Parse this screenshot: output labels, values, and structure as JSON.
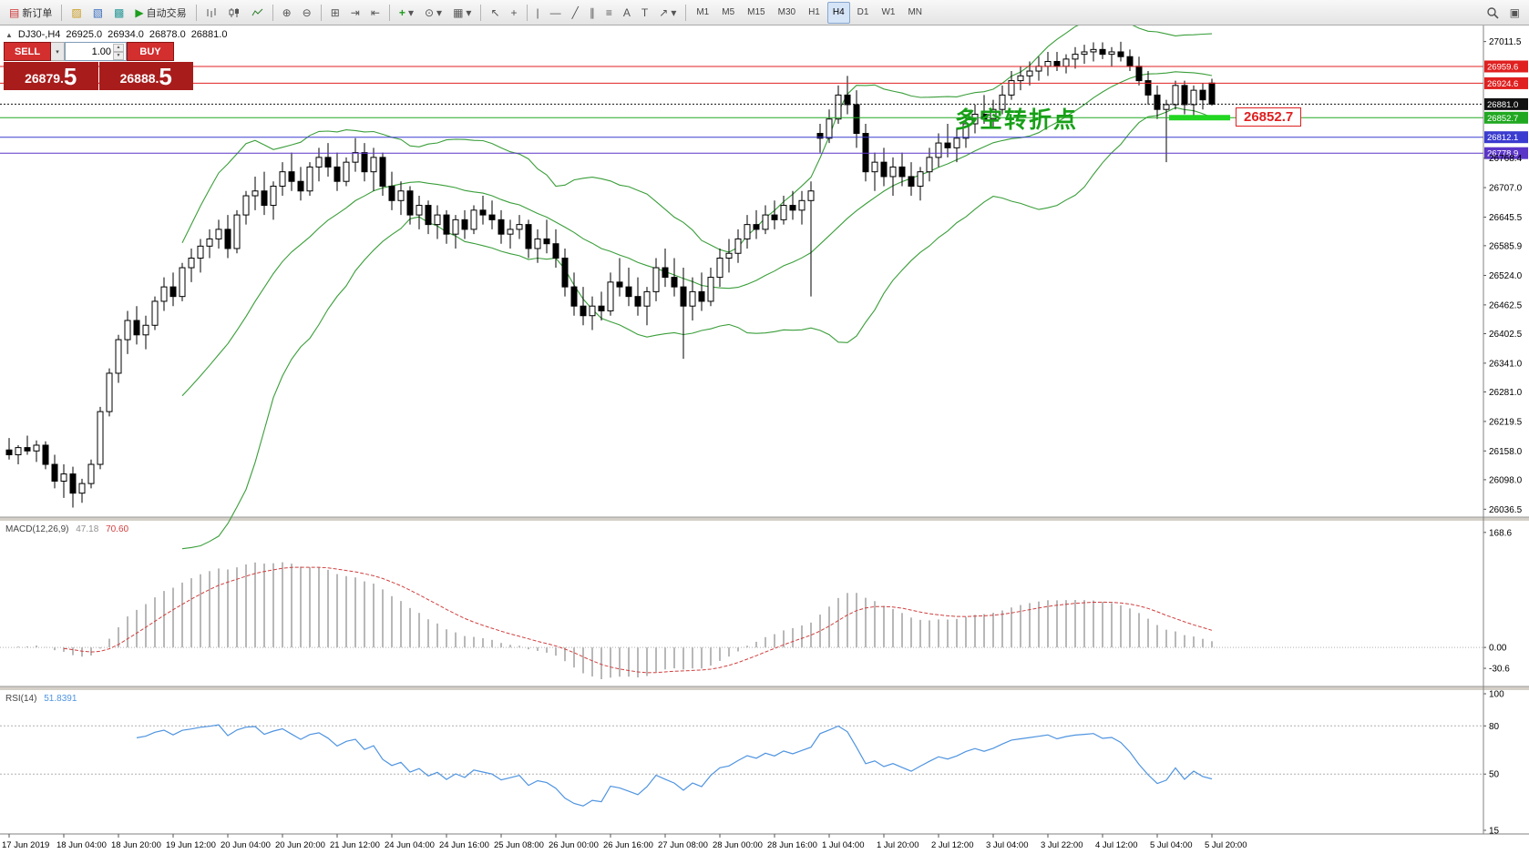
{
  "toolbar": {
    "new_order_label": "新订单",
    "autotrading_label": "自动交易",
    "timeframes": [
      "M1",
      "M5",
      "M15",
      "M30",
      "H1",
      "H4",
      "D1",
      "W1",
      "MN"
    ],
    "active_timeframe": "H4"
  },
  "icons": {
    "collapse": "▲",
    "new_order": "▤",
    "new_chart": "▨",
    "profiles": "▧",
    "tester": "▩",
    "autotrading_play": "▶",
    "zoom_in": "⊕",
    "zoom_out": "⊖",
    "tile_windows": "⊞",
    "auto_scroll": "⇥",
    "chart_shift": "⇤",
    "indicators_plus": "+",
    "periods": "⊙",
    "templates": "▦",
    "dropdown": "▾",
    "cursor": "↖",
    "crosshair": "+",
    "vertical_line": "|",
    "horizontal_line": "—",
    "trendline": "╱",
    "channel": "∥",
    "fibonacci": "≡",
    "text": "A",
    "text_label": "T",
    "arrows": "↗",
    "data_window": "▣",
    "spinner_up": "▲",
    "spinner_down": "▼"
  },
  "chart_header": {
    "collapse": "▲",
    "symbol": "DJ30-,H4",
    "open": "26925.0",
    "high": "26934.0",
    "low": "26878.0",
    "close": "26881.0"
  },
  "trade_panel": {
    "sell_label": "SELL",
    "buy_label": "BUY",
    "volume": "1.00",
    "sell_price": "26879.",
    "sell_price_big": "5",
    "buy_price": "26888.",
    "buy_price_big": "5"
  },
  "annotation": {
    "text": "多空转折点",
    "color": "#17a017"
  },
  "price_flag": "26852.7",
  "axis": {
    "y_ticks": [
      27011.5,
      26768.4,
      26707.0,
      26645.5,
      26585.9,
      26524.0,
      26462.5,
      26402.5,
      26341.0,
      26281.0,
      26219.5,
      26158.0,
      26098.0,
      26036.5
    ],
    "price_lines": [
      {
        "price": 26959.6,
        "label": "26959.6",
        "color": "#e02020",
        "style": "solid"
      },
      {
        "price": 26924.6,
        "label": "26924.6",
        "color": "#e02020",
        "style": "solid"
      },
      {
        "price": 26881.0,
        "label": "26881.0",
        "color": "#111111",
        "style": "dotted"
      },
      {
        "price": 26852.7,
        "label": "26852.7",
        "color": "#21a821",
        "style": "solid"
      },
      {
        "price": 26812.1,
        "label": "26812.1",
        "color": "#3b3bd0",
        "style": "solid"
      },
      {
        "price": 26778.9,
        "label": "26778.9",
        "color": "#5b35c8",
        "style": "solid"
      }
    ],
    "x_labels": [
      "17 Jun 2019",
      "18 Jun 04:00",
      "18 Jun 20:00",
      "19 Jun 12:00",
      "20 Jun 04:00",
      "20 Jun 20:00",
      "21 Jun 12:00",
      "24 Jun 04:00",
      "24 Jun 16:00",
      "25 Jun 08:00",
      "26 Jun 00:00",
      "26 Jun 16:00",
      "27 Jun 08:00",
      "28 Jun 00:00",
      "28 Jun 16:00",
      "1 Jul 04:00",
      "1 Jul 20:00",
      "2 Jul 12:00",
      "3 Jul 04:00",
      "3 Jul 22:00",
      "4 Jul 12:00",
      "5 Jul 04:00",
      "5 Jul 20:00"
    ]
  },
  "chart_data": {
    "type": "candlestick",
    "symbol": "DJ30-",
    "timeframe": "H4",
    "price_range": [
      26020,
      27045
    ],
    "candles": [
      [
        26160,
        26185,
        26140,
        26150
      ],
      [
        26150,
        26170,
        26130,
        26165
      ],
      [
        26165,
        26190,
        26150,
        26158
      ],
      [
        26158,
        26180,
        26135,
        26170
      ],
      [
        26170,
        26178,
        26120,
        26130
      ],
      [
        26130,
        26150,
        26080,
        26095
      ],
      [
        26095,
        26130,
        26060,
        26110
      ],
      [
        26110,
        26125,
        26040,
        26070
      ],
      [
        26070,
        26100,
        26050,
        26090
      ],
      [
        26090,
        26140,
        26080,
        26130
      ],
      [
        26130,
        26250,
        26120,
        26240
      ],
      [
        26240,
        26330,
        26230,
        26320
      ],
      [
        26320,
        26400,
        26300,
        26390
      ],
      [
        26390,
        26450,
        26360,
        26430
      ],
      [
        26430,
        26460,
        26380,
        26400
      ],
      [
        26400,
        26440,
        26370,
        26420
      ],
      [
        26420,
        26480,
        26410,
        26470
      ],
      [
        26470,
        26520,
        26450,
        26500
      ],
      [
        26500,
        26530,
        26460,
        26480
      ],
      [
        26480,
        26550,
        26470,
        26540
      ],
      [
        26540,
        26580,
        26510,
        26560
      ],
      [
        26560,
        26600,
        26530,
        26585
      ],
      [
        26585,
        26620,
        26560,
        26600
      ],
      [
        26600,
        26640,
        26580,
        26620
      ],
      [
        26620,
        26650,
        26560,
        26580
      ],
      [
        26580,
        26660,
        26570,
        26650
      ],
      [
        26650,
        26700,
        26630,
        26690
      ],
      [
        26690,
        26730,
        26660,
        26700
      ],
      [
        26700,
        26740,
        26650,
        26670
      ],
      [
        26670,
        26720,
        26640,
        26710
      ],
      [
        26710,
        26760,
        26690,
        26740
      ],
      [
        26740,
        26780,
        26700,
        26720
      ],
      [
        26720,
        26750,
        26680,
        26700
      ],
      [
        26700,
        26760,
        26690,
        26750
      ],
      [
        26750,
        26790,
        26720,
        26770
      ],
      [
        26770,
        26800,
        26730,
        26750
      ],
      [
        26750,
        26780,
        26700,
        26720
      ],
      [
        26720,
        26770,
        26710,
        26760
      ],
      [
        26760,
        26810,
        26740,
        26780
      ],
      [
        26780,
        26800,
        26720,
        26740
      ],
      [
        26740,
        26790,
        26700,
        26770
      ],
      [
        26770,
        26780,
        26690,
        26710
      ],
      [
        26710,
        26740,
        26660,
        26680
      ],
      [
        26680,
        26720,
        26650,
        26700
      ],
      [
        26700,
        26710,
        26630,
        26650
      ],
      [
        26650,
        26690,
        26620,
        26670
      ],
      [
        26670,
        26680,
        26610,
        26630
      ],
      [
        26630,
        26670,
        26600,
        26650
      ],
      [
        26650,
        26660,
        26590,
        26610
      ],
      [
        26610,
        26650,
        26580,
        26640
      ],
      [
        26640,
        26660,
        26600,
        26620
      ],
      [
        26620,
        26670,
        26610,
        26660
      ],
      [
        26660,
        26690,
        26630,
        26650
      ],
      [
        26650,
        26680,
        26620,
        26640
      ],
      [
        26640,
        26660,
        26590,
        26610
      ],
      [
        26610,
        26640,
        26580,
        26620
      ],
      [
        26620,
        26650,
        26600,
        26630
      ],
      [
        26630,
        26640,
        26560,
        26580
      ],
      [
        26580,
        26620,
        26550,
        26600
      ],
      [
        26600,
        26640,
        26570,
        26590
      ],
      [
        26590,
        26620,
        26540,
        26560
      ],
      [
        26560,
        26580,
        26480,
        26500
      ],
      [
        26500,
        26530,
        26440,
        26460
      ],
      [
        26460,
        26500,
        26420,
        26440
      ],
      [
        26440,
        26480,
        26410,
        26460
      ],
      [
        26460,
        26490,
        26430,
        26450
      ],
      [
        26450,
        26530,
        26440,
        26510
      ],
      [
        26510,
        26560,
        26480,
        26500
      ],
      [
        26500,
        26540,
        26460,
        26480
      ],
      [
        26480,
        26520,
        26440,
        26460
      ],
      [
        26460,
        26500,
        26420,
        26490
      ],
      [
        26490,
        26560,
        26470,
        26540
      ],
      [
        26540,
        26580,
        26500,
        26520
      ],
      [
        26520,
        26560,
        26480,
        26500
      ],
      [
        26500,
        26540,
        26350,
        26460
      ],
      [
        26460,
        26520,
        26430,
        26490
      ],
      [
        26490,
        26530,
        26450,
        26470
      ],
      [
        26470,
        26540,
        26460,
        26520
      ],
      [
        26520,
        26580,
        26500,
        26560
      ],
      [
        26560,
        26600,
        26530,
        26570
      ],
      [
        26570,
        26620,
        26550,
        26600
      ],
      [
        26600,
        26650,
        26580,
        26630
      ],
      [
        26630,
        26660,
        26600,
        26620
      ],
      [
        26620,
        26670,
        26610,
        26650
      ],
      [
        26650,
        26680,
        26620,
        26640
      ],
      [
        26640,
        26690,
        26630,
        26670
      ],
      [
        26670,
        26700,
        26640,
        26660
      ],
      [
        26660,
        26700,
        26630,
        26680
      ],
      [
        26680,
        26720,
        26480,
        26700
      ],
      [
        26820,
        26840,
        26780,
        26810
      ],
      [
        26810,
        26870,
        26800,
        26850
      ],
      [
        26850,
        26920,
        26840,
        26900
      ],
      [
        26900,
        26940,
        26860,
        26880
      ],
      [
        26880,
        26910,
        26790,
        26820
      ],
      [
        26820,
        26840,
        26720,
        26740
      ],
      [
        26740,
        26780,
        26700,
        26760
      ],
      [
        26760,
        26790,
        26710,
        26730
      ],
      [
        26730,
        26770,
        26690,
        26750
      ],
      [
        26750,
        26780,
        26710,
        26730
      ],
      [
        26730,
        26760,
        26690,
        26710
      ],
      [
        26710,
        26750,
        26680,
        26740
      ],
      [
        26740,
        26790,
        26720,
        26770
      ],
      [
        26770,
        26820,
        26750,
        26800
      ],
      [
        26800,
        26840,
        26770,
        26790
      ],
      [
        26790,
        26830,
        26760,
        26810
      ],
      [
        26810,
        26860,
        26790,
        26840
      ],
      [
        26840,
        26880,
        26820,
        26860
      ],
      [
        26860,
        26900,
        26840,
        26850
      ],
      [
        26850,
        26890,
        26830,
        26870
      ],
      [
        26870,
        26920,
        26860,
        26900
      ],
      [
        26900,
        26950,
        26890,
        26930
      ],
      [
        26930,
        26960,
        26910,
        26940
      ],
      [
        26940,
        26970,
        26920,
        26950
      ],
      [
        26950,
        26980,
        26930,
        26960
      ],
      [
        26960,
        26990,
        26940,
        26970
      ],
      [
        26970,
        26990,
        26950,
        26960
      ],
      [
        26960,
        26985,
        26945,
        26975
      ],
      [
        26975,
        27000,
        26955,
        26985
      ],
      [
        26985,
        27005,
        26965,
        26990
      ],
      [
        26990,
        27010,
        26970,
        26995
      ],
      [
        26995,
        27010,
        26975,
        26985
      ],
      [
        26985,
        27000,
        26960,
        26990
      ],
      [
        26990,
        27011,
        26970,
        26980
      ],
      [
        26980,
        26995,
        26950,
        26960
      ],
      [
        26960,
        26980,
        26920,
        26930
      ],
      [
        26930,
        26950,
        26880,
        26900
      ],
      [
        26900,
        26920,
        26850,
        26870
      ],
      [
        26870,
        26890,
        26760,
        26880
      ],
      [
        26880,
        26930,
        26870,
        26920
      ],
      [
        26920,
        26930,
        26860,
        26880
      ],
      [
        26880,
        26920,
        26850,
        26910
      ],
      [
        26910,
        26925,
        26870,
        26890
      ],
      [
        26925,
        26934,
        26878,
        26881
      ]
    ],
    "indicators": {
      "bollinger": {
        "label": "Bollinger Bands",
        "period": 20,
        "deviation": 2,
        "color": "#3a9e3a"
      },
      "macd": {
        "label": "MACD(12,26,9)",
        "main_value": "47.18",
        "signal_value": "70.60",
        "scale_labels": [
          "168.6",
          "0.00",
          "-30.6"
        ],
        "hist_color": "#b8b8b8",
        "signal_color": "#d04040"
      },
      "rsi": {
        "label": "RSI(14)",
        "value": "51.8391",
        "scale_labels": [
          "100",
          "80",
          "50",
          "15"
        ],
        "levels": [
          80,
          50
        ],
        "color": "#4f94e0"
      }
    },
    "highlight_segment": {
      "price": 26852.7,
      "color": "#22d622"
    }
  }
}
